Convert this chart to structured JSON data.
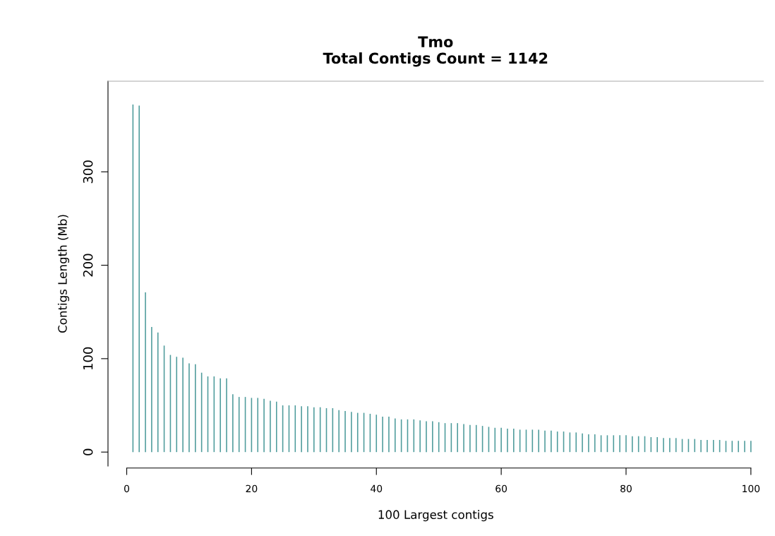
{
  "chart_data": {
    "type": "bar",
    "title": "Tmo\nTotal Contigs Count = 1142",
    "xlabel": "100 Largest contigs",
    "ylabel": "Contigs Length (Mb)",
    "x": [
      1,
      2,
      3,
      4,
      5,
      6,
      7,
      8,
      9,
      10,
      11,
      12,
      13,
      14,
      15,
      16,
      17,
      18,
      19,
      20,
      21,
      22,
      23,
      24,
      25,
      26,
      27,
      28,
      29,
      30,
      31,
      32,
      33,
      34,
      35,
      36,
      37,
      38,
      39,
      40,
      41,
      42,
      43,
      44,
      45,
      46,
      47,
      48,
      49,
      50,
      51,
      52,
      53,
      54,
      55,
      56,
      57,
      58,
      59,
      60,
      61,
      62,
      63,
      64,
      65,
      66,
      67,
      68,
      69,
      70,
      71,
      72,
      73,
      74,
      75,
      76,
      77,
      78,
      79,
      80,
      81,
      82,
      83,
      84,
      85,
      86,
      87,
      88,
      89,
      90,
      91,
      92,
      93,
      94,
      95,
      96,
      97,
      98,
      99,
      100
    ],
    "values": [
      372,
      371,
      171,
      134,
      128,
      114,
      104,
      102,
      101,
      95,
      94,
      85,
      81,
      81,
      79,
      79,
      62,
      59,
      59,
      58,
      58,
      57,
      55,
      54,
      50,
      50,
      50,
      49,
      49,
      48,
      48,
      47,
      47,
      45,
      44,
      43,
      42,
      42,
      41,
      40,
      38,
      38,
      36,
      35,
      35,
      35,
      34,
      33,
      33,
      32,
      31,
      31,
      31,
      30,
      29,
      29,
      28,
      27,
      26,
      26,
      25,
      25,
      24,
      24,
      24,
      24,
      23,
      23,
      22,
      22,
      21,
      21,
      20,
      19,
      19,
      18,
      18,
      18,
      18,
      18,
      17,
      17,
      17,
      16,
      16,
      15,
      15,
      15,
      14,
      14,
      14,
      13,
      13,
      13,
      13,
      12,
      12,
      12,
      12,
      12
    ],
    "color": "#4f9c9c",
    "xlim": [
      -3,
      102
    ],
    "ylim": [
      -15,
      397
    ],
    "xticks": [
      0,
      20,
      40,
      60,
      80,
      100
    ],
    "yticks": [
      0,
      100,
      200,
      300
    ],
    "grid": false
  }
}
